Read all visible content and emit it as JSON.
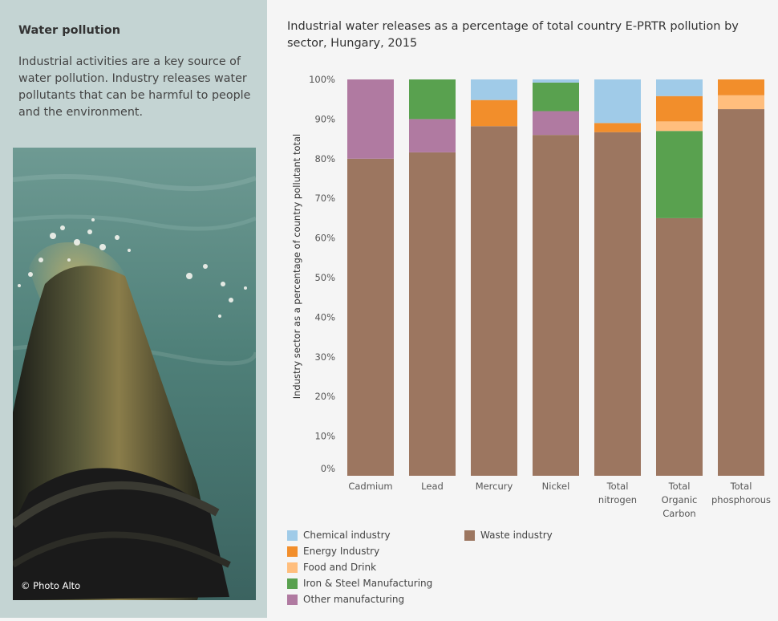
{
  "side": {
    "title": "Water pollution",
    "body": "Industrial activities are a key source of water pollution. Industry releases water pollutants that can be harmful to people and the environment.",
    "photo_credit": "© Photo Alto",
    "photo_subject": "pipe discharging water into river"
  },
  "colors": {
    "panel_bg": "#c4d4d3",
    "page_bg": "#f5f5f5"
  },
  "chart_data": {
    "type": "bar",
    "stacked": true,
    "title": "Industrial water releases as a percentage of total country E-PRTR pollution by sector, Hungary, 2015",
    "ylabel": "Industry sector as a percentage of country pollutant total",
    "xlabel": "",
    "ylim": [
      0,
      100
    ],
    "yticks": [
      "0%",
      "10%",
      "20%",
      "30%",
      "40%",
      "50%",
      "60%",
      "70%",
      "80%",
      "90%",
      "100%"
    ],
    "grid": false,
    "legend_position": "bottom",
    "categories": [
      [
        "Cadmium"
      ],
      [
        "Lead"
      ],
      [
        "Mercury"
      ],
      [
        "Nickel"
      ],
      [
        "Total",
        "nitrogen"
      ],
      [
        "Total",
        "Organic",
        "Carbon"
      ],
      [
        "Total",
        "phosphorous"
      ]
    ],
    "series": [
      {
        "name": "Waste industry",
        "color": "#9c7660",
        "values": [
          80.0,
          81.6,
          88.2,
          86.0,
          86.7,
          65.0,
          92.5
        ]
      },
      {
        "name": "Other manufacturing",
        "color": "#b07aa1",
        "values": [
          20.0,
          8.4,
          0,
          6.0,
          0,
          0,
          0
        ]
      },
      {
        "name": "Iron & Steel Manufacturing",
        "color": "#59a14f",
        "values": [
          0,
          10.0,
          0,
          7.2,
          0,
          22.0,
          0
        ]
      },
      {
        "name": "Food and Drink",
        "color": "#ffbe7d",
        "values": [
          0,
          0,
          0,
          0,
          0,
          2.4,
          3.5
        ]
      },
      {
        "name": "Energy Industry",
        "color": "#f28e2b",
        "values": [
          0,
          0,
          6.6,
          0,
          2.3,
          6.4,
          4.0
        ]
      },
      {
        "name": "Chemical industry",
        "color": "#a0cbe8",
        "values": [
          0,
          0,
          5.2,
          0.8,
          11.0,
          4.2,
          0
        ]
      }
    ],
    "legend_order": [
      "Chemical industry",
      "Energy Industry",
      "Food and Drink",
      "Iron & Steel Manufacturing",
      "Other manufacturing",
      "Waste industry"
    ]
  }
}
